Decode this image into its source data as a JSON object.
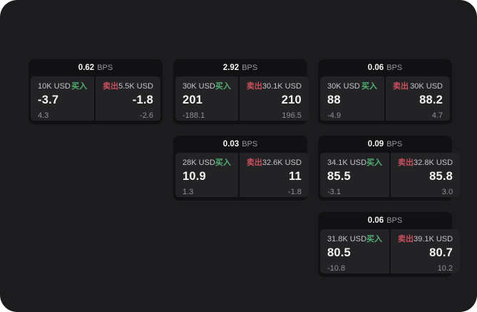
{
  "labels": {
    "bps_unit": "BPS",
    "buy_tag": "买入",
    "sell_tag": "卖出"
  },
  "colors": {
    "panel_bg": "#1c1c1e",
    "card_bg": "#111113",
    "subcard_bg": "#232325",
    "buy_green": "#50af73",
    "sell_red": "#c8505f",
    "value_white": "#f4f4f5",
    "muted_gray": "#909094"
  },
  "cards": [
    {
      "row": 1,
      "col": 1,
      "bps": "0.62",
      "buy": {
        "size": "10K USD",
        "value": "-3.7",
        "sub": "4.3"
      },
      "sell": {
        "size": "5.5K USD",
        "value": "-1.8",
        "sub": "-2.6"
      }
    },
    {
      "row": 1,
      "col": 2,
      "bps": "2.92",
      "buy": {
        "size": "30K USD",
        "value": "201",
        "sub": "-188.1"
      },
      "sell": {
        "size": "30.1K USD",
        "value": "210",
        "sub": "196.5"
      }
    },
    {
      "row": 1,
      "col": 3,
      "bps": "0.06",
      "buy": {
        "size": "30K USD",
        "value": "88",
        "sub": "-4.9"
      },
      "sell": {
        "size": "30K USD",
        "value": "88.2",
        "sub": "4.7"
      }
    },
    {
      "row": 2,
      "col": 2,
      "bps": "0.03",
      "buy": {
        "size": "28K USD",
        "value": "10.9",
        "sub": "1.3"
      },
      "sell": {
        "size": "32.6K USD",
        "value": "11",
        "sub": "-1.8"
      }
    },
    {
      "row": 2,
      "col": 3,
      "bps": "0.09",
      "buy": {
        "size": "34.1K USD",
        "value": "85.5",
        "sub": "-3.1"
      },
      "sell": {
        "size": "32.8K USD",
        "value": "85.8",
        "sub": "3.0"
      }
    },
    {
      "row": 3,
      "col": 3,
      "bps": "0.06",
      "buy": {
        "size": "31.8K USD",
        "value": "80.5",
        "sub": "-10.8"
      },
      "sell": {
        "size": "39.1K USD",
        "value": "80.7",
        "sub": "10.2"
      }
    }
  ]
}
